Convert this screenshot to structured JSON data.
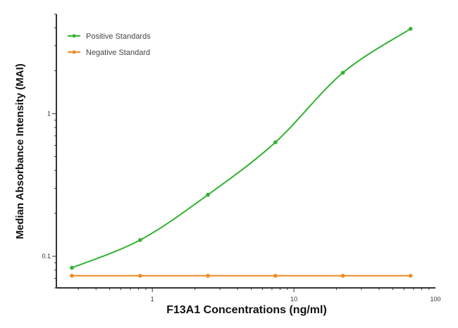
{
  "chart_data": {
    "type": "line",
    "title": "",
    "xlabel": "F13A1 Concentrations (ng/ml)",
    "ylabel": "Median Absorbance Intensity (MAI)",
    "x_scale": "log",
    "y_scale": "log",
    "xlim": [
      0.21,
      100
    ],
    "ylim": [
      0.06,
      5
    ],
    "x_ticks": [
      {
        "value": 1,
        "label": "1"
      },
      {
        "value": 10,
        "label": "10"
      },
      {
        "value": 100,
        "label": "100"
      }
    ],
    "y_ticks": [
      {
        "value": 0.1,
        "label": "0.1"
      },
      {
        "value": 1,
        "label": "1"
      }
    ],
    "grid": false,
    "legend_position": "top-left",
    "series": [
      {
        "name": "Positive Standards",
        "color": "#33b233",
        "fit": "smooth curve",
        "x": [
          0.27,
          0.82,
          2.47,
          7.4,
          22.2,
          66.7
        ],
        "y": [
          0.083,
          0.13,
          0.27,
          0.63,
          1.94,
          3.94
        ]
      },
      {
        "name": "Negative Standard",
        "color": "#f08a24",
        "fit": "line",
        "x": [
          0.27,
          0.82,
          2.47,
          7.4,
          22.2,
          66.7
        ],
        "y": [
          0.073,
          0.073,
          0.073,
          0.073,
          0.073,
          0.073
        ]
      }
    ]
  }
}
